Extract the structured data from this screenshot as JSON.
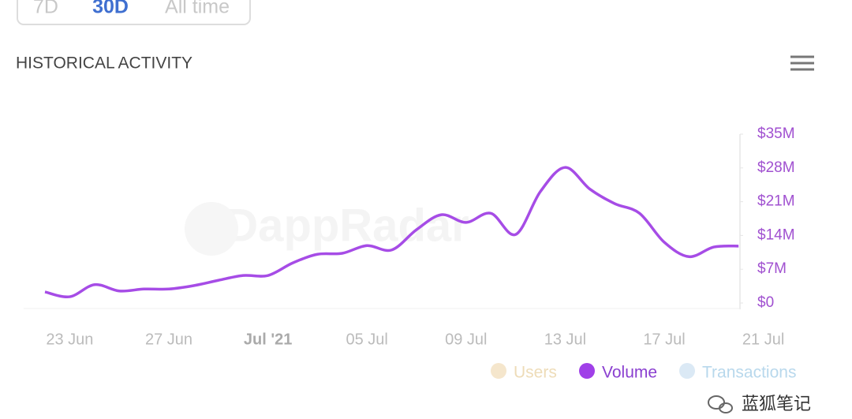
{
  "tabs": {
    "items": [
      "7D",
      "30D",
      "All time"
    ],
    "selected": 1
  },
  "chart_data": {
    "type": "line",
    "title": "HISTORICAL ACTIVITY",
    "categories": [
      null,
      "23 Jun",
      null,
      null,
      null,
      "27 Jun",
      null,
      null,
      null,
      "Jul '21",
      null,
      null,
      null,
      "05 Jul",
      null,
      null,
      null,
      "09 Jul",
      null,
      null,
      null,
      "13 Jul",
      null,
      null,
      null,
      "17 Jul",
      null,
      null,
      null,
      "21 Jul"
    ],
    "bold_categories": [
      9
    ],
    "series": [
      {
        "name": "Volume",
        "color": "#a64ce6",
        "values": [
          2.3,
          1.3,
          3.8,
          2.5,
          2.9,
          2.9,
          3.6,
          4.7,
          5.7,
          5.7,
          8.3,
          10.1,
          10.3,
          11.9,
          11.0,
          15.2,
          18.3,
          16.7,
          18.6,
          14.2,
          23.1,
          28.1,
          23.6,
          20.6,
          18.6,
          12.6,
          9.6,
          11.6,
          11.8,
          null
        ]
      }
    ],
    "legend": [
      {
        "name": "Users",
        "color": "#f5e6cc",
        "text_color": "#eedcb8"
      },
      {
        "name": "Volume",
        "color": "#a040e8",
        "text_color": "#8a3fd0"
      },
      {
        "name": "Transactions",
        "color": "#dbe9f5",
        "text_color": "#b8d8ec"
      }
    ],
    "ylim": [
      0,
      35
    ],
    "yticks": [
      {
        "value": 0,
        "label": "$0"
      },
      {
        "value": 7,
        "label": "$7M"
      },
      {
        "value": 14,
        "label": "$14M"
      },
      {
        "value": 21,
        "label": "$21M"
      },
      {
        "value": 28,
        "label": "$28M"
      },
      {
        "value": 35,
        "label": "$35M"
      }
    ],
    "watermark": "DappRadar"
  },
  "footer": {
    "source": "蓝狐笔记"
  }
}
